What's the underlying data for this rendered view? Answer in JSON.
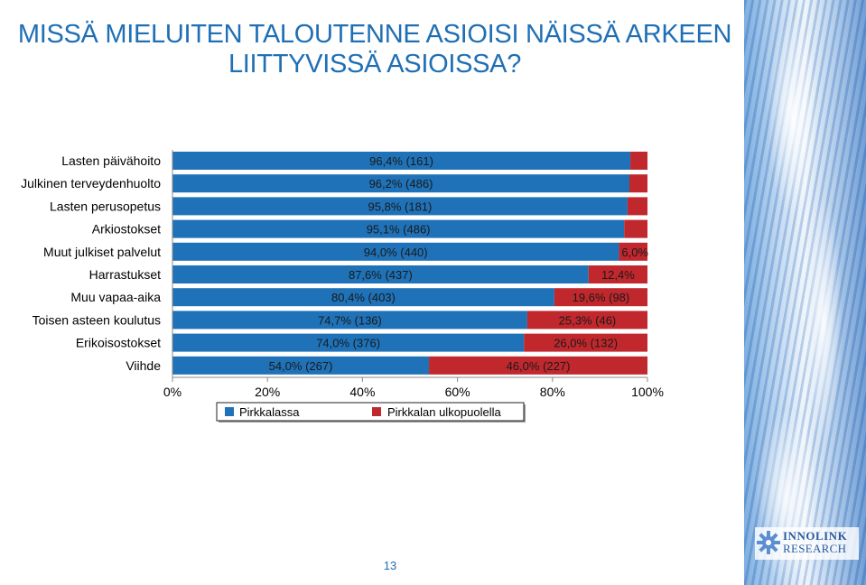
{
  "title_lines": [
    "MISSÄ MIELUITEN TALOUTENNE ASIOISI NÄISSÄ ARKEEN",
    "LIITTYVISSÄ ASIOISSA?"
  ],
  "page_number": "13",
  "logo": {
    "line1": "INNOLINK",
    "line2": "RESEARCH"
  },
  "colors": {
    "pirkkalassa": "#1f72b8",
    "ulkopuolella": "#c0282d",
    "title": "#1f6fb5"
  },
  "chart_data": {
    "type": "bar",
    "orientation": "horizontal",
    "stacked": "percent",
    "categories": [
      "Lasten päivähoito",
      "Julkinen terveydenhuolto",
      "Lasten perusopetus",
      "Arkiostokset",
      "Muut julkiset palvelut",
      "Harrastukset",
      "Muu vapaa-aika",
      "Toisen asteen koulutus",
      "Erikoisostokset",
      "Viihde"
    ],
    "series": [
      {
        "name": "Pirkkalassa",
        "values": [
          96.4,
          96.2,
          95.8,
          95.1,
          94.0,
          87.6,
          80.4,
          74.7,
          74.0,
          54.0
        ],
        "labels": [
          "96,4% (161)",
          "96,2% (486)",
          "95,8% (181)",
          "95,1% (486)",
          "94,0% (440)",
          "87,6% (437)",
          "80,4% (403)",
          "74,7% (136)",
          "74,0% (376)",
          "54,0% (267)"
        ]
      },
      {
        "name": "Pirkkalan ulkopuolella",
        "values": [
          3.6,
          3.8,
          4.2,
          4.9,
          6.0,
          12.4,
          19.6,
          25.3,
          26.0,
          46.0
        ],
        "labels": [
          "",
          "",
          "",
          "",
          "6,0%",
          "12,4%",
          "19,6% (98)",
          "25,3% (46)",
          "26,0% (132)",
          "46,0% (227)"
        ]
      }
    ],
    "xlim": [
      0,
      100
    ],
    "xticks": [
      "0%",
      "20%",
      "40%",
      "60%",
      "80%",
      "100%"
    ],
    "legend_position": "bottom"
  }
}
